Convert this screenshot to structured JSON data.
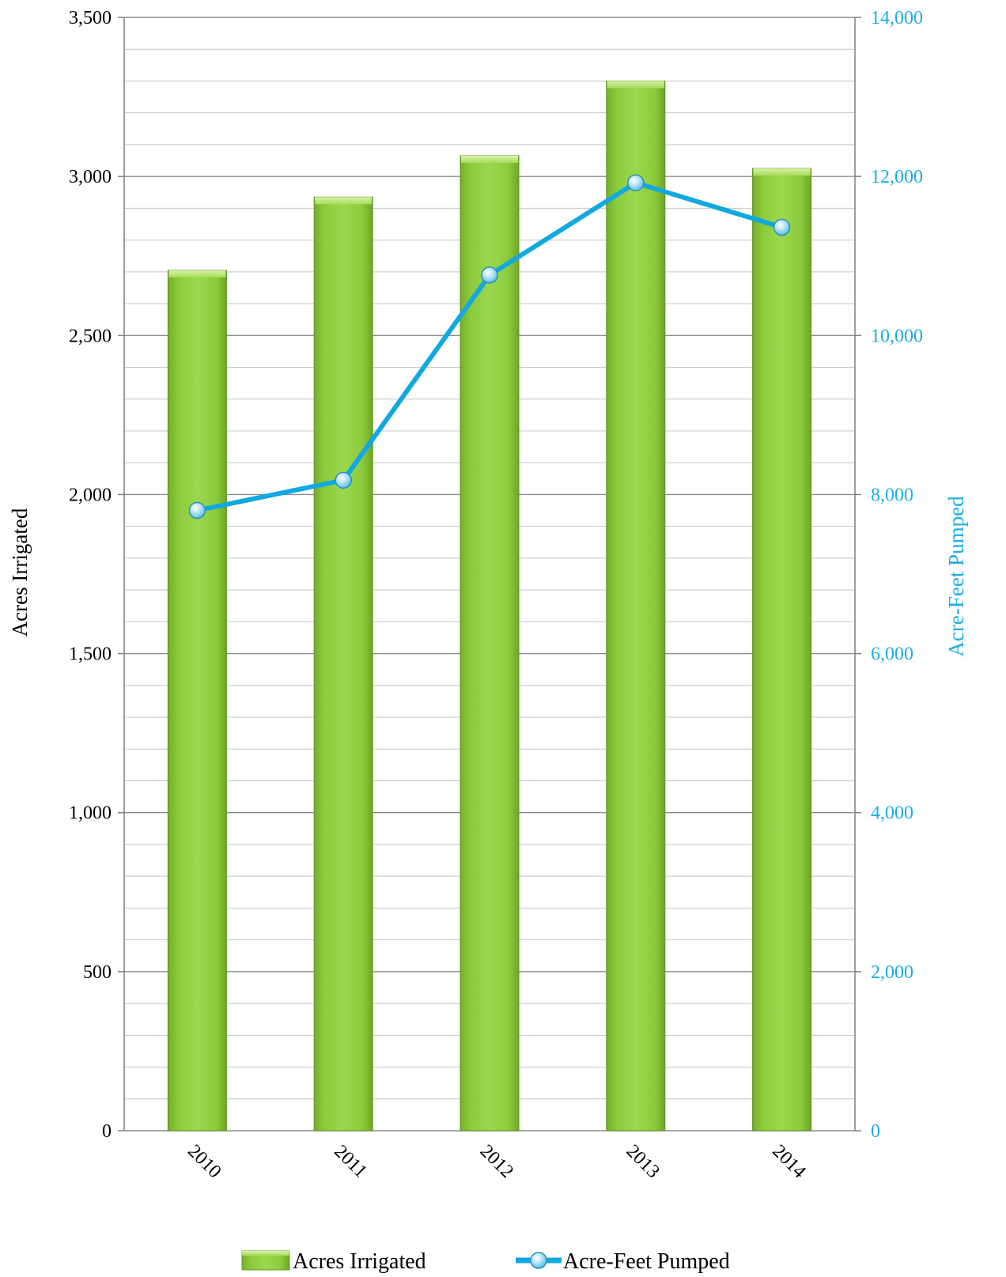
{
  "chart_data": {
    "type": "bar",
    "categories": [
      "2010",
      "2011",
      "2012",
      "2013",
      "2014"
    ],
    "series": [
      {
        "name": "Acres Irrigated",
        "type": "bar",
        "axis": "left",
        "values": [
          2705,
          2935,
          3065,
          3300,
          3025
        ]
      },
      {
        "name": "Acre-Feet Pumped",
        "type": "line",
        "axis": "right",
        "values": [
          7800,
          8180,
          10760,
          11920,
          11360
        ]
      }
    ],
    "ylabel": "Acres Irrigated",
    "ylabel_right": "Acre-Feet Pumped",
    "ylim": [
      0,
      3500
    ],
    "ylim_right": [
      0,
      14000
    ],
    "yticks_left": [
      "0",
      "500",
      "1,000",
      "1,500",
      "2,000",
      "2,500",
      "3,000",
      "3,500"
    ],
    "yticks_right": [
      "0",
      "2,000",
      "4,000",
      "6,000",
      "8,000",
      "10,000",
      "12,000",
      "14,000"
    ],
    "grid": true,
    "legend_position": "bottom",
    "colors": {
      "bar": "#8cc63f",
      "line": "#12a8e0",
      "right_axis_text": "#1aaee6"
    }
  }
}
